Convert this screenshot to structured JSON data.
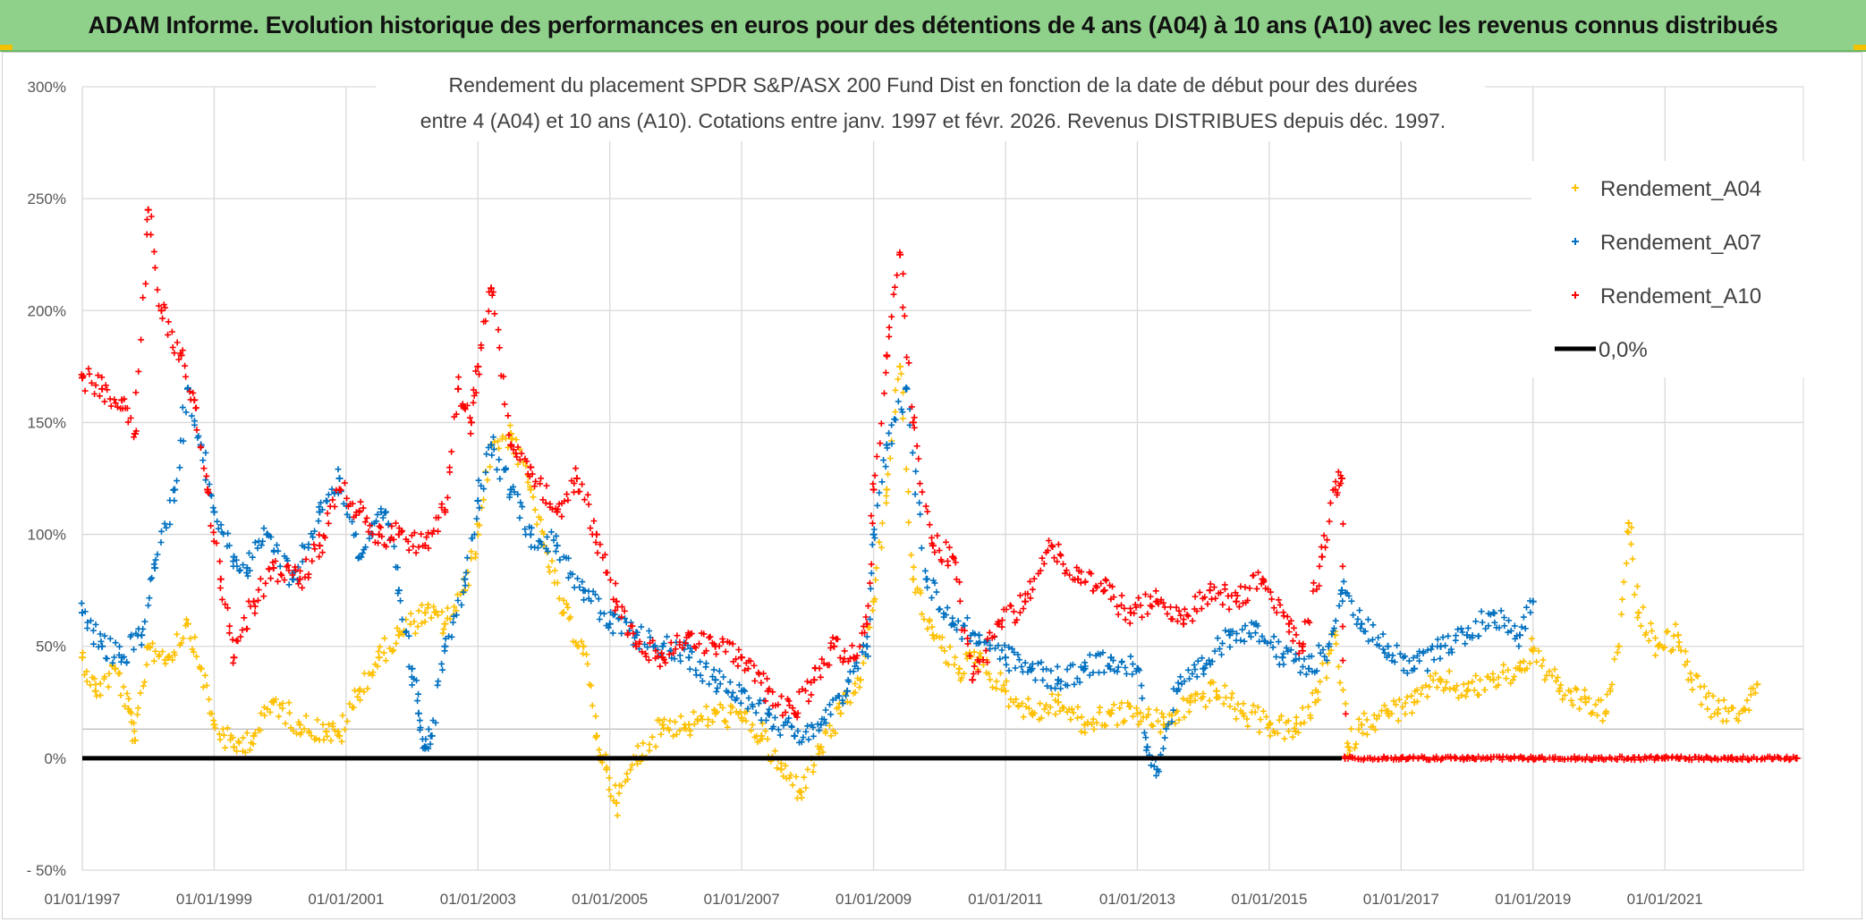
{
  "banner": {
    "title": "ADAM Informe. Evolution historique des performances en euros pour des détentions de 4 ans (A04) à 10 ans (A10) avec les revenus connus distribués"
  },
  "chart_data": {
    "type": "scatter",
    "title_lines": [
      "Rendement du placement SPDR S&P/ASX 200 Fund Dist en fonction de la date de début pour des durées",
      "entre 4 (A04) et 10 ans (A10). Cotations entre janv. 1997 et févr. 2026. Revenus DISTRIBUES depuis déc. 1997."
    ],
    "xlabel": "",
    "ylabel": "",
    "xlim": [
      1997.0,
      2023.1
    ],
    "ylim": [
      -50,
      300
    ],
    "x_tick_values": [
      1997,
      1999,
      2001,
      2003,
      2005,
      2007,
      2009,
      2011,
      2013,
      2015,
      2017,
      2019,
      2021
    ],
    "x_tick_labels": [
      "01/01/1997",
      "01/01/1999",
      "01/01/2001",
      "01/01/2003",
      "01/01/2005",
      "01/01/2007",
      "01/01/2009",
      "01/01/2011",
      "01/01/2013",
      "01/01/2015",
      "01/01/2017",
      "01/01/2019",
      "01/01/2021"
    ],
    "y_ticks": [
      -50,
      0,
      50,
      100,
      150,
      200,
      250,
      300
    ],
    "y_tick_labels": [
      "- 50%",
      "0%",
      "50%",
      "100%",
      "150%",
      "200%",
      "250%",
      "300%"
    ],
    "grid": true,
    "legend_position": "top-right",
    "series": [
      {
        "name": "Rendement_A04",
        "color": "#ffc000",
        "marker": "plus",
        "x": [
          1997.0,
          1997.2,
          1997.5,
          1997.7,
          1997.8,
          1998.0,
          1998.3,
          1998.6,
          1998.8,
          1999.0,
          1999.3,
          1999.6,
          1999.9,
          2000.3,
          2000.7,
          2000.9,
          2001.2,
          2001.5,
          2001.8,
          2002.2,
          2002.5,
          2002.8,
          2003.0,
          2003.2,
          2003.5,
          2003.8,
          2004.0,
          2004.3,
          2004.6,
          2004.8,
          2004.95,
          2005.1,
          2005.4,
          2005.8,
          2006.2,
          2006.6,
          2007.0,
          2007.3,
          2007.6,
          2007.9,
          2008.2,
          2008.5,
          2008.8,
          2009.0,
          2009.2,
          2009.4,
          2009.6,
          2009.9,
          2010.3,
          2010.6,
          2011.0,
          2011.4,
          2011.8,
          2012.2,
          2012.6,
          2013.0,
          2013.4,
          2013.8,
          2014.2,
          2014.6,
          2015.0,
          2015.4,
          2015.7,
          2016.0,
          2016.2,
          2016.4,
          2016.8,
          2017.2,
          2017.6,
          2018.0,
          2018.4,
          2018.8,
          2019.0,
          2019.4,
          2019.8,
          2020.1,
          2020.3,
          2020.45,
          2020.6,
          2020.9,
          2021.2,
          2021.4,
          2021.8,
          2022.2,
          2022.4
        ],
        "y": [
          45,
          30,
          40,
          22,
          8,
          50,
          45,
          60,
          40,
          15,
          5,
          10,
          25,
          15,
          12,
          10,
          30,
          45,
          55,
          65,
          60,
          75,
          100,
          140,
          145,
          120,
          95,
          65,
          50,
          10,
          -5,
          -20,
          0,
          15,
          15,
          20,
          18,
          10,
          -5,
          -15,
          5,
          20,
          35,
          70,
          120,
          175,
          80,
          55,
          40,
          45,
          30,
          20,
          25,
          15,
          20,
          20,
          15,
          25,
          30,
          20,
          15,
          12,
          25,
          55,
          5,
          15,
          20,
          25,
          35,
          30,
          35,
          40,
          48,
          30,
          25,
          20,
          50,
          105,
          65,
          50,
          55,
          35,
          20,
          22,
          33
        ]
      },
      {
        "name": "Rendement_A07",
        "color": "#0070c0",
        "marker": "plus",
        "x": [
          1997.0,
          1997.3,
          1997.6,
          1997.9,
          1998.1,
          1998.4,
          1998.6,
          1998.8,
          1999.0,
          1999.3,
          1999.5,
          1999.8,
          2000.2,
          2000.6,
          2000.9,
          2001.2,
          2001.4,
          2001.6,
          2001.8,
          2002.0,
          2002.1,
          2002.2,
          2002.3,
          2002.5,
          2002.8,
          2003.0,
          2003.2,
          2003.5,
          2003.8,
          2004.2,
          2004.6,
          2005.0,
          2005.4,
          2005.8,
          2006.2,
          2006.6,
          2007.0,
          2007.4,
          2007.8,
          2008.2,
          2008.6,
          2008.9,
          2009.0,
          2009.2,
          2009.5,
          2009.8,
          2010.2,
          2010.6,
          2011.0,
          2011.4,
          2011.8,
          2012.2,
          2012.6,
          2013.0,
          2013.15,
          2013.3,
          2013.6,
          2014.0,
          2014.4,
          2014.8,
          2015.2,
          2015.6,
          2015.9,
          2016.1,
          2016.4,
          2016.8,
          2017.2,
          2017.6,
          2018.0,
          2018.4,
          2018.8,
          2019.0
        ],
        "y": [
          65,
          50,
          45,
          55,
          85,
          120,
          165,
          140,
          110,
          90,
          85,
          100,
          80,
          110,
          125,
          90,
          100,
          110,
          75,
          40,
          20,
          5,
          10,
          50,
          80,
          115,
          140,
          120,
          100,
          95,
          75,
          60,
          55,
          50,
          45,
          35,
          30,
          20,
          10,
          15,
          30,
          50,
          100,
          140,
          165,
          80,
          60,
          55,
          45,
          40,
          35,
          40,
          45,
          40,
          5,
          -5,
          30,
          40,
          55,
          60,
          45,
          40,
          50,
          75,
          60,
          50,
          40,
          50,
          55,
          65,
          55,
          70
        ]
      },
      {
        "name": "Rendement_A10",
        "color": "#ff0000",
        "marker": "plus",
        "x": [
          1997.0,
          1997.3,
          1997.6,
          1997.8,
          1998.0,
          1998.2,
          1998.5,
          1998.7,
          1998.9,
          1999.1,
          1999.3,
          1999.6,
          1999.9,
          2000.3,
          2000.6,
          2000.9,
          2001.2,
          2001.5,
          2001.8,
          2002.2,
          2002.5,
          2002.7,
          2002.9,
          2003.0,
          2003.2,
          2003.5,
          2003.8,
          2004.2,
          2004.5,
          2004.8,
          2005.1,
          2005.4,
          2005.8,
          2006.2,
          2006.6,
          2007.0,
          2007.4,
          2007.8,
          2008.1,
          2008.4,
          2008.7,
          2008.9,
          2009.0,
          2009.2,
          2009.4,
          2009.6,
          2009.9,
          2010.2,
          2010.5,
          2010.9,
          2011.3,
          2011.7,
          2012.1,
          2012.5,
          2012.9,
          2013.3,
          2013.7,
          2014.1,
          2014.5,
          2014.9,
          2015.3,
          2015.5,
          2015.8,
          2016.0,
          2016.1,
          2016.15,
          2017.0,
          2018.0,
          2019.0,
          2020.0,
          2021.0,
          2022.0,
          2023.0
        ],
        "y": [
          170,
          165,
          160,
          145,
          245,
          200,
          180,
          160,
          120,
          80,
          45,
          70,
          85,
          80,
          95,
          120,
          110,
          100,
          100,
          95,
          110,
          165,
          150,
          175,
          210,
          140,
          130,
          110,
          125,
          100,
          70,
          50,
          45,
          55,
          50,
          45,
          30,
          20,
          35,
          50,
          45,
          60,
          120,
          180,
          225,
          150,
          95,
          90,
          35,
          60,
          70,
          95,
          80,
          75,
          65,
          70,
          60,
          75,
          70,
          80,
          60,
          50,
          90,
          120,
          125,
          0,
          0,
          0,
          0,
          0,
          0,
          0,
          0
        ]
      },
      {
        "name": "0,0%",
        "color": "#000000",
        "marker": "line",
        "x": [
          1997.0,
          2016.1
        ],
        "y": [
          0,
          0
        ]
      }
    ]
  }
}
